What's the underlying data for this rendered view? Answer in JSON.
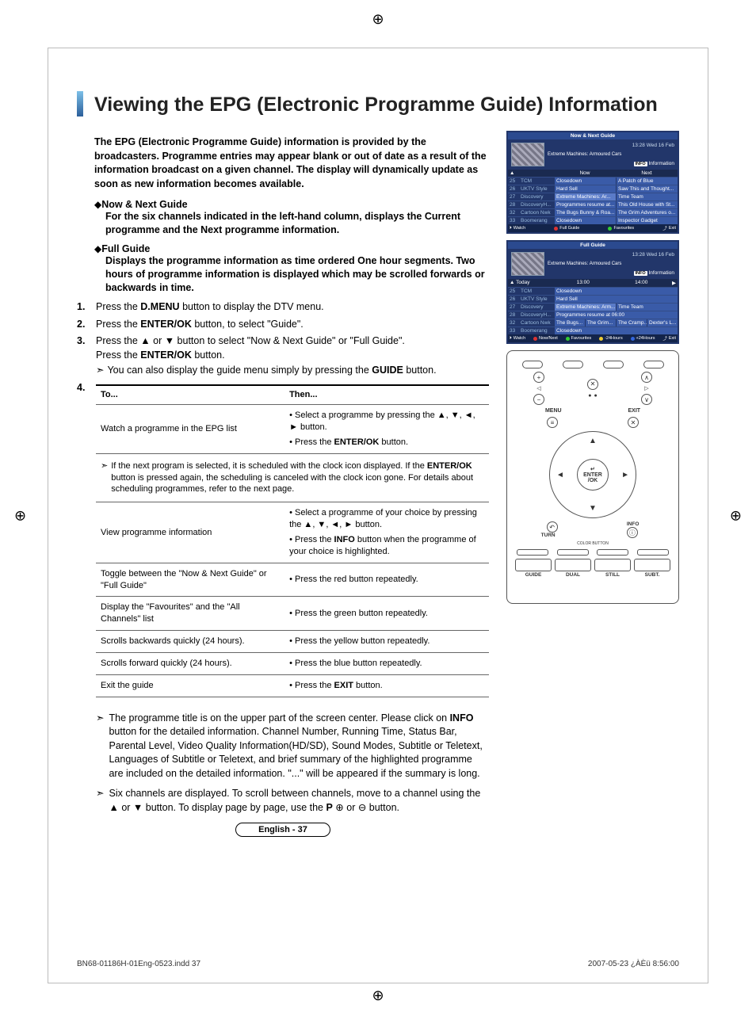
{
  "crop_glyph": "⊕",
  "title": "Viewing the EPG (Electronic Programme Guide) Information",
  "intro": "The EPG (Electronic Programme Guide) information is provided by the broadcasters. Programme entries may appear blank or out of date as a result of the information broadcast on a given channel. The display will dynamically update as soon as new information becomes available.",
  "sub1": {
    "title": "Now & Next Guide",
    "desc": "For the six channels indicated in the left-hand column, displays the Current programme and the Next programme information."
  },
  "sub2": {
    "title": "Full Guide",
    "desc": "Displays the programme information as time ordered One hour segments. Two hours of programme information is displayed which may be scrolled forwards or backwards in time."
  },
  "steps": {
    "s1": {
      "num": "1.",
      "txt_a": "Press the ",
      "btn": "D.MENU",
      "txt_b": " button to display the DTV menu."
    },
    "s2": {
      "num": "2.",
      "txt_a": "Press the ",
      "btn": "ENTER/OK",
      "txt_b": " button, to select \"Guide\"."
    },
    "s3": {
      "num": "3.",
      "txt_a": "Press the ▲ or ▼ button to select \"Now & Next Guide\" or \"Full Guide\".",
      "line2_a": "Press the ",
      "btn2": "ENTER/OK",
      "line2_b": " button."
    },
    "s3_note": "You can also display the guide menu simply by pressing the GUIDE button.",
    "s4_num": "4."
  },
  "table": {
    "h1": "To...",
    "h2": "Then...",
    "r1_to": "Watch a programme in the EPG list",
    "r1_then_a": "• Select a programme by pressing the ▲, ▼, ◄, ► button.",
    "r1_then_b": "• Press the ENTER/OK button.",
    "note": "If the next program is selected, it is scheduled with the clock icon displayed. If the ENTER/OK button is pressed again, the scheduling is canceled with the clock icon gone. For details about scheduling programmes, refer to the next page.",
    "r2_to": "View programme information",
    "r2_then_a": "• Select a programme of your choice by pressing the ▲, ▼, ◄, ► button.",
    "r2_then_b": "• Press the INFO button when the programme of your choice is highlighted.",
    "r3_to": "Toggle between the \"Now & Next Guide\" or \"Full Guide\"",
    "r3_then": "• Press the red button repeatedly.",
    "r4_to": "Display the \"Favourites\" and the \"All Channels\" list",
    "r4_then": "• Press the green button repeatedly.",
    "r5_to": "Scrolls backwards quickly (24 hours).",
    "r5_then": "• Press the yellow button repeatedly.",
    "r6_to": "Scrolls forward quickly (24 hours).",
    "r6_then": "• Press the blue button repeatedly.",
    "r7_to": "Exit the guide",
    "r7_then": "• Press the EXIT button."
  },
  "bottom_notes": {
    "n1": "The programme title is on the upper part of the screen center. Please click on INFO button for the detailed information. Channel Number, Running Time, Status Bar, Parental Level, Video Quality Information(HD/SD), Sound Modes, Subtitle or Teletext, Languages of Subtitle or Teletext, and brief summary of the highlighted programme are included on the detailed information. \"...\" will be appeared if the summary is long.",
    "n2": "Six channels are displayed. To scroll between channels, move to a channel using the ▲ or ▼ button. To display page by page, use the P ⊕ or ⊖ button."
  },
  "page_num": "English - 37",
  "footer": {
    "left": "BN68-01186H-01Eng-0523.indd   37",
    "right": "2007-05-23   ¿ÀÈü 8:56:00"
  },
  "epg1": {
    "title": "Now & Next Guide",
    "dt": "13:28 Wed 16 Feb",
    "prog": "Extreme Machines: Armoured Cars",
    "info_label": "Information",
    "axis_now": "Now",
    "axis_next": "Next",
    "rows": [
      {
        "n": "25",
        "ch": "TCM",
        "a": "Closedown",
        "b": "A Patch of Blue"
      },
      {
        "n": "26",
        "ch": "UKTV Style",
        "a": "Hard Sell",
        "b": "Saw This and Thought..."
      },
      {
        "n": "27",
        "ch": "Discovery",
        "a": "Extreme Machines: Ar...",
        "b": "Time Team",
        "hl": true
      },
      {
        "n": "28",
        "ch": "DiscoveryH...",
        "a": "Programmes resume at...",
        "b": "This Old House with St..."
      },
      {
        "n": "32",
        "ch": "Cartoon Nwk",
        "a": "The Bugs Bunny & Roa...",
        "b": "The Grim Adventures o..."
      },
      {
        "n": "33",
        "ch": "Boomerang",
        "a": "Closedown",
        "b": "Inspector Gadget"
      }
    ],
    "ftr": {
      "watch": "Watch",
      "full": "Full Guide",
      "fav": "Favourites",
      "exit": "Exit"
    }
  },
  "epg2": {
    "title": "Full Guide",
    "dt": "13:28 Wed 16 Feb",
    "prog": "Extreme Machines: Armoured Cars",
    "info_label": "Information",
    "axis_today": "Today",
    "axis_t1": "13:00",
    "axis_t2": "14:00",
    "rows": [
      {
        "n": "25",
        "ch": "TCM",
        "cells": [
          "Closedown"
        ]
      },
      {
        "n": "26",
        "ch": "UKTV Style",
        "cells": [
          "Hard Sell"
        ]
      },
      {
        "n": "27",
        "ch": "Discovery",
        "cells": [
          "Extreme Machines: Arm...",
          "Time Team"
        ],
        "hl": true
      },
      {
        "n": "28",
        "ch": "DiscoveryH...",
        "cells": [
          "Programmes resume at 06:00"
        ]
      },
      {
        "n": "32",
        "ch": "Cartoon Nwk",
        "cells": [
          "The Bugs...",
          "The Grim...",
          "The Cramp...",
          "Dexter's L..."
        ]
      },
      {
        "n": "33",
        "ch": "Boomerang",
        "cells": [
          "Closedown"
        ]
      }
    ],
    "ftr": {
      "watch": "Watch",
      "nownext": "Now/Next",
      "fav": "Favourites",
      "m24": "-24Hours",
      "p24": "+24Hours",
      "exit": "Exit"
    }
  },
  "remote": {
    "menu": "MENU",
    "exit": "EXIT",
    "enter": "ENTER\n/OK",
    "return": "TURN",
    "info": "INFO",
    "color_label": "COLOR BUTTON",
    "guide": "GUIDE",
    "dual": "DUAL",
    "still": "STILL",
    "subt": "SUBT."
  }
}
